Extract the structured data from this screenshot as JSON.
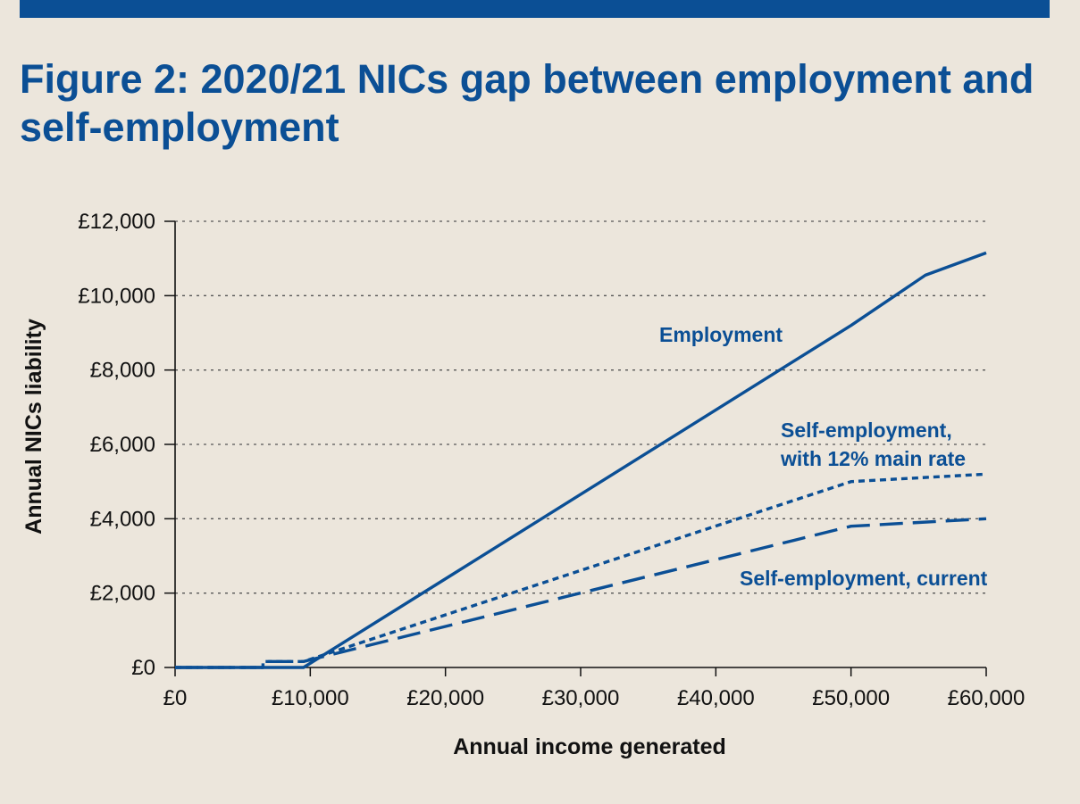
{
  "header": {
    "title": "Figure 2: 2020/21 NICs gap between employment and self-employment"
  },
  "colors": {
    "brand": "#0b4f95",
    "background": "#ece6dc",
    "grid": "#555555",
    "text": "#111111"
  },
  "chart_data": {
    "type": "line",
    "title": "Figure 2: 2020/21 NICs gap between employment and self-employment",
    "xlabel": "Annual income generated",
    "ylabel": "Annual NICs liability",
    "xlim": [
      0,
      60000
    ],
    "ylim": [
      0,
      12000
    ],
    "x_ticks": [
      0,
      10000,
      20000,
      30000,
      40000,
      50000,
      60000
    ],
    "x_tick_labels": [
      "£0",
      "£10,000",
      "£20,000",
      "£30,000",
      "£40,000",
      "£50,000",
      "£60,000"
    ],
    "y_ticks": [
      0,
      2000,
      4000,
      6000,
      8000,
      10000,
      12000
    ],
    "y_tick_labels": [
      "£0",
      "£2,000",
      "£4,000",
      "£6,000",
      "£8,000",
      "£10,000",
      "£12,000"
    ],
    "grid": "horizontal dotted",
    "legend": "none (series labelled directly on chart)",
    "series": [
      {
        "name": "Employment",
        "style": "solid",
        "x": [
          0,
          9500,
          50000,
          55500,
          60000
        ],
        "y": [
          0,
          0,
          9200,
          10550,
          11150
        ]
      },
      {
        "name": "Self-employment, with 12% main rate",
        "style": "short-dash",
        "x": [
          0,
          6500,
          6500,
          9500,
          50000,
          60000
        ],
        "y": [
          0,
          0,
          160,
          160,
          5000,
          5200
        ]
      },
      {
        "name": "Self-employment, current",
        "style": "long-dash",
        "x": [
          0,
          6500,
          6500,
          9500,
          50000,
          60000
        ],
        "y": [
          0,
          0,
          160,
          160,
          3800,
          4000
        ]
      }
    ],
    "labels": {
      "employment": "Employment",
      "se_12_line1": "Self-employment,",
      "se_12_line2": "with 12% main rate",
      "se_current": "Self-employment, current"
    }
  }
}
